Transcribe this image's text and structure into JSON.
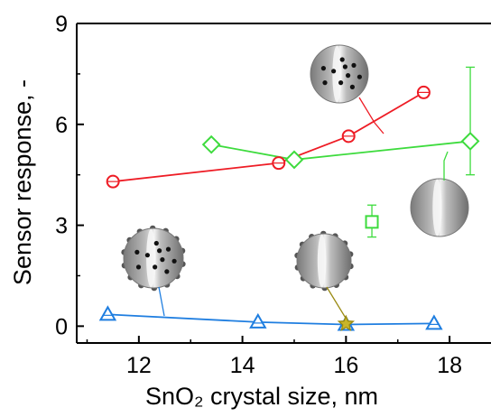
{
  "chart_data": {
    "type": "scatter",
    "title": "",
    "xlabel": "SnO₂ crystal size, nm",
    "ylabel": "Sensor response, -",
    "xlim": [
      10.8,
      18.8
    ],
    "ylim": [
      -0.5,
      9
    ],
    "x_ticks": [
      "12",
      "14",
      "16",
      "18"
    ],
    "y_ticks": [
      "0",
      "3",
      "6",
      "9"
    ],
    "grid": false,
    "legend": "none",
    "series": [
      {
        "marker": "circle",
        "color": "#ee1c25",
        "points": [
          {
            "x": 11.5,
            "y": 4.3
          },
          {
            "x": 14.7,
            "y": 4.85
          },
          {
            "x": 16.05,
            "y": 5.65
          },
          {
            "x": 17.5,
            "y": 6.95
          }
        ]
      },
      {
        "marker": "diamond",
        "color": "#3ddb3d",
        "points": [
          {
            "x": 13.4,
            "y": 5.4
          },
          {
            "x": 15.0,
            "y": 4.95
          },
          {
            "x": 18.4,
            "y": 5.5,
            "err_low": 1.0,
            "err_high": 2.2
          }
        ]
      },
      {
        "marker": "square",
        "color": "#3ddb3d",
        "points": [
          {
            "x": 16.5,
            "y": 3.1,
            "err_low": 0.45,
            "err_high": 0.5
          }
        ]
      },
      {
        "marker": "triangle",
        "color": "#1f7ee0",
        "points": [
          {
            "x": 11.4,
            "y": 0.35
          },
          {
            "x": 14.3,
            "y": 0.12
          },
          {
            "x": 16.0,
            "y": 0.05
          },
          {
            "x": 17.7,
            "y": 0.08
          }
        ]
      },
      {
        "marker": "star",
        "color": "#9a8a12",
        "points": [
          {
            "x": 16.0,
            "y": 0.07
          }
        ]
      }
    ]
  },
  "colors": {
    "axis": "#000000",
    "red": "#ee1c25",
    "green": "#3ddb3d",
    "blue": "#1f7ee0",
    "olive": "#9a8a12",
    "sphere_light": "#e6e6e6",
    "sphere_dark": "#8c8c8c"
  },
  "illustrations": [
    {
      "name": "sphere-particles-inside",
      "kind": "inside-dots"
    },
    {
      "name": "sphere-plain",
      "kind": "plain"
    },
    {
      "name": "sphere-particles-surface-and-inside",
      "kind": "surface-and-inside-dots"
    },
    {
      "name": "sphere-particles-surface",
      "kind": "surface-dots"
    }
  ]
}
